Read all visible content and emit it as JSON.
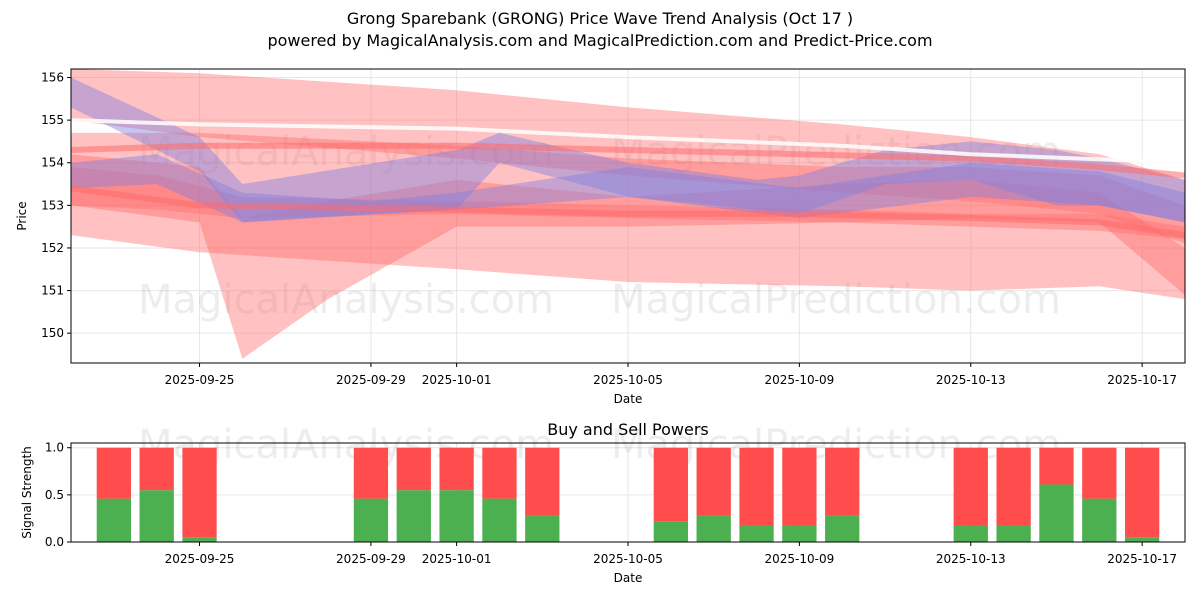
{
  "title": "Grong Sparebank (GRONG) Price Wave Trend Analysis (Oct 17 )",
  "subtitle": "powered by MagicalAnalysis.com and MagicalPrediction.com and Predict-Price.com",
  "watermarks": [
    "MagicalAnalysis.com",
    "MagicalPrediction.com"
  ],
  "colors": {
    "buy": "#4caf50",
    "sell": "#ff4d4d",
    "band_red": "#ff6b6b",
    "band_blue": "#8080e0"
  },
  "chart_data": [
    {
      "type": "area",
      "title": "",
      "xlabel": "Date",
      "ylabel": "Price",
      "ylim": [
        149.3,
        156.2
      ],
      "xlim": [
        "2025-09-22",
        "2025-10-18"
      ],
      "yticks": [
        150,
        151,
        152,
        153,
        154,
        155,
        156
      ],
      "xticks": [
        "2025-09-25",
        "2025-09-29",
        "2025-10-01",
        "2025-10-05",
        "2025-10-09",
        "2025-10-13",
        "2025-10-17"
      ],
      "grid": true,
      "bands": [
        {
          "color": "red",
          "x": [
            "2025-09-22",
            "2025-09-25",
            "2025-10-01",
            "2025-10-05",
            "2025-10-10",
            "2025-10-13",
            "2025-10-16",
            "2025-10-18"
          ],
          "upper": [
            156.2,
            156.1,
            155.7,
            155.3,
            154.9,
            154.6,
            154.2,
            153.6
          ],
          "lower": [
            155.0,
            154.6,
            154.1,
            153.7,
            153.3,
            153.1,
            152.8,
            152.1
          ]
        },
        {
          "color": "red",
          "x": [
            "2025-09-22",
            "2025-09-25",
            "2025-10-01",
            "2025-10-05",
            "2025-10-10",
            "2025-10-13",
            "2025-10-16",
            "2025-10-18"
          ],
          "upper": [
            154.7,
            154.7,
            154.4,
            154.1,
            153.9,
            153.9,
            153.7,
            153.0
          ],
          "lower": [
            152.3,
            151.9,
            151.5,
            151.2,
            151.1,
            151.0,
            151.1,
            150.8
          ]
        },
        {
          "color": "red",
          "x": [
            "2025-09-22",
            "2025-09-25",
            "2025-09-26",
            "2025-09-28",
            "2025-10-01",
            "2025-10-05",
            "2025-10-10",
            "2025-10-13",
            "2025-10-16",
            "2025-10-18"
          ],
          "upper": [
            154.2,
            153.9,
            152.7,
            153.1,
            153.6,
            153.2,
            153.5,
            153.6,
            153.3,
            152.0
          ],
          "lower": [
            153.0,
            152.6,
            149.4,
            150.8,
            152.5,
            152.5,
            152.6,
            152.7,
            152.6,
            150.9
          ]
        },
        {
          "color": "red",
          "x": [
            "2025-09-22",
            "2025-09-24",
            "2025-09-26",
            "2025-10-01",
            "2025-10-05",
            "2025-10-10",
            "2025-10-13",
            "2025-10-16",
            "2025-10-18"
          ],
          "upper": [
            153.9,
            153.7,
            153.2,
            153.1,
            153.0,
            152.9,
            152.8,
            152.8,
            152.5
          ],
          "lower": [
            153.0,
            152.9,
            152.7,
            152.8,
            152.7,
            152.6,
            152.5,
            152.4,
            152.2
          ]
        },
        {
          "color": "blue",
          "x": [
            "2025-09-22",
            "2025-09-25",
            "2025-09-26",
            "2025-10-01",
            "2025-10-02",
            "2025-10-05",
            "2025-10-08",
            "2025-10-09",
            "2025-10-11",
            "2025-10-13",
            "2025-10-15",
            "2025-10-16",
            "2025-10-18"
          ],
          "upper": [
            156.0,
            154.6,
            153.5,
            154.3,
            154.7,
            154.0,
            153.6,
            153.7,
            154.3,
            154.5,
            154.3,
            154.1,
            153.6
          ],
          "lower": [
            155.3,
            153.8,
            152.6,
            152.9,
            154.0,
            153.2,
            152.9,
            152.8,
            153.5,
            153.6,
            153.0,
            153.0,
            152.6
          ]
        },
        {
          "color": "blue",
          "x": [
            "2025-09-22",
            "2025-09-24",
            "2025-09-26",
            "2025-09-29",
            "2025-10-01",
            "2025-10-05",
            "2025-10-09",
            "2025-10-13",
            "2025-10-16",
            "2025-10-18"
          ],
          "upper": [
            154.0,
            154.2,
            153.3,
            153.1,
            153.3,
            153.9,
            153.4,
            154.0,
            153.8,
            153.3
          ],
          "lower": [
            153.4,
            153.5,
            152.6,
            152.8,
            152.9,
            153.2,
            152.7,
            153.2,
            153.0,
            152.6
          ]
        }
      ],
      "lines": [
        {
          "color": "red",
          "x": [
            "2025-09-22",
            "2025-09-25",
            "2025-10-01",
            "2025-10-05",
            "2025-10-09",
            "2025-10-13",
            "2025-10-16",
            "2025-10-18"
          ],
          "y": [
            153.4,
            153.0,
            152.9,
            152.8,
            152.8,
            152.7,
            152.6,
            152.3
          ]
        },
        {
          "color": "red",
          "x": [
            "2025-09-22",
            "2025-09-25",
            "2025-10-01",
            "2025-10-05",
            "2025-10-09",
            "2025-10-13",
            "2025-10-16",
            "2025-10-18"
          ],
          "y": [
            154.3,
            154.4,
            154.4,
            154.3,
            154.2,
            154.1,
            153.9,
            153.7
          ]
        },
        {
          "color": "white",
          "x": [
            "2025-09-22",
            "2025-09-25",
            "2025-10-01",
            "2025-10-05",
            "2025-10-10",
            "2025-10-13",
            "2025-10-18"
          ],
          "y": [
            155.0,
            154.9,
            154.8,
            154.6,
            154.4,
            154.2,
            154.0
          ]
        }
      ]
    },
    {
      "type": "bar",
      "title": "Buy and Sell Powers",
      "xlabel": "Date",
      "ylabel": "Signal Strength",
      "ylim": [
        0,
        1.05
      ],
      "xlim": [
        "2025-09-22",
        "2025-10-18"
      ],
      "yticks": [
        0.0,
        0.5,
        1.0
      ],
      "xticks": [
        "2025-09-25",
        "2025-09-29",
        "2025-10-01",
        "2025-10-05",
        "2025-10-09",
        "2025-10-13",
        "2025-10-17"
      ],
      "categories": [
        "2025-09-23",
        "2025-09-24",
        "2025-09-25",
        "2025-09-29",
        "2025-09-30",
        "2025-10-01",
        "2025-10-02",
        "2025-10-03",
        "2025-10-06",
        "2025-10-07",
        "2025-10-08",
        "2025-10-09",
        "2025-10-10",
        "2025-10-13",
        "2025-10-14",
        "2025-10-15",
        "2025-10-16",
        "2025-10-17"
      ],
      "series": [
        {
          "name": "",
          "values": [
            0.46,
            0.55,
            0.05,
            0.46,
            0.55,
            0.55,
            0.46,
            0.28,
            0.22,
            0.28,
            0.17,
            0.17,
            0.28,
            0.17,
            0.17,
            0.61,
            0.46,
            0.05
          ]
        },
        {
          "name": "",
          "values": [
            0.54,
            0.45,
            0.95,
            0.54,
            0.45,
            0.45,
            0.54,
            0.72,
            0.78,
            0.72,
            0.83,
            0.83,
            0.72,
            0.83,
            0.83,
            0.39,
            0.54,
            0.95
          ]
        }
      ]
    }
  ]
}
